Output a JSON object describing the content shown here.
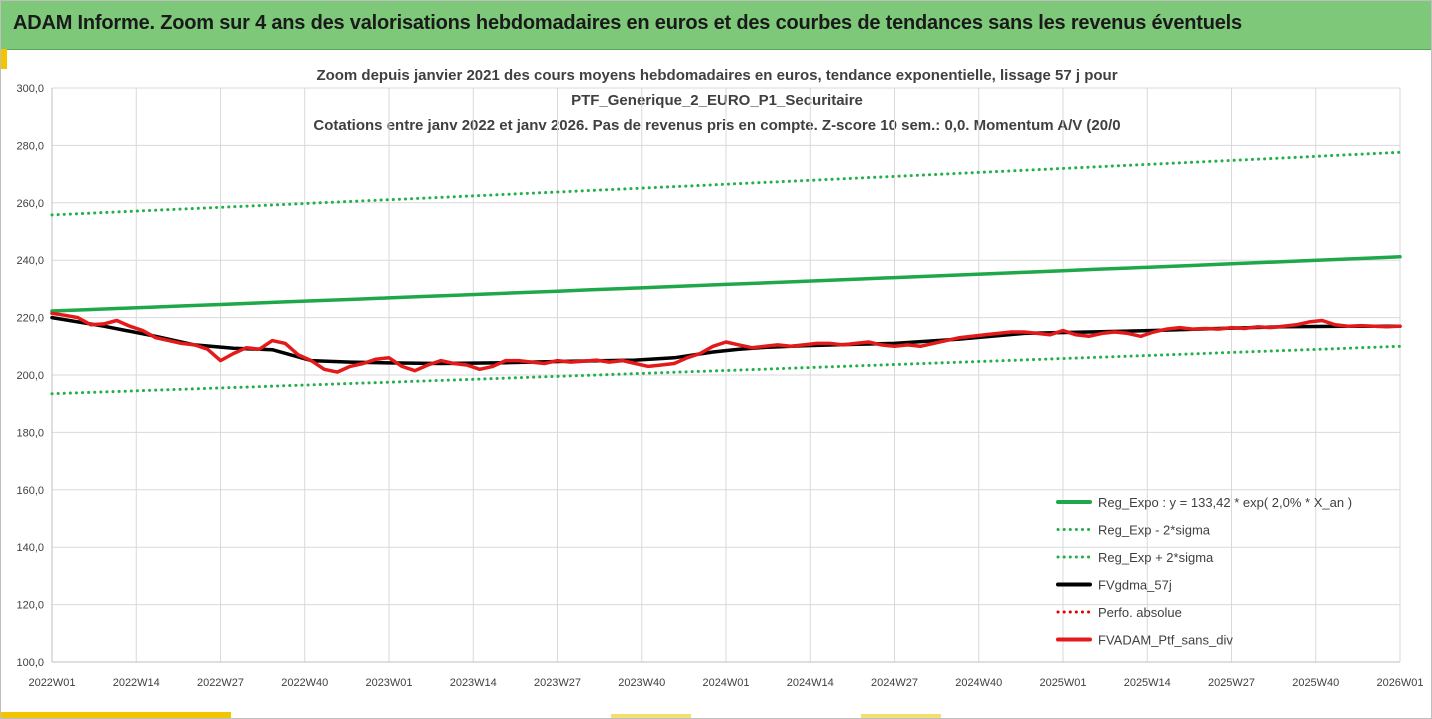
{
  "header": {
    "title": "ADAM Informe. Zoom sur 4 ans des valorisations hebdomadaires en euros et des courbes de tendances sans les revenus éventuels"
  },
  "colors": {
    "header_bg": "#7ec87a",
    "trend": "#1fa84a",
    "band": "#22b04a",
    "sma": "#000000",
    "perf": "#e00000",
    "price": "#e41a1a",
    "grid": "#d9d9d9"
  },
  "chart_data": {
    "type": "line",
    "title_lines": [
      "Zoom depuis janvier 2021 des cours moyens hebdomadaires  en euros, tendance exponentielle, lissage 57 j pour",
      "PTF_Generique_2_EURO_P1_Securitaire",
      "Cotations entre janv 2022 et janv 2026. Pas de revenus pris en compte. Z-score 10 sem.: 0,0. Momentum A/V (20/0"
    ],
    "ylim": [
      100,
      300
    ],
    "y_ticks": [
      "100,0",
      "120,0",
      "140,0",
      "160,0",
      "180,0",
      "200,0",
      "220,0",
      "240,0",
      "260,0",
      "280,0",
      "300,0"
    ],
    "y_tick_values": [
      100,
      120,
      140,
      160,
      180,
      200,
      220,
      240,
      260,
      280,
      300
    ],
    "x_ticks": [
      "2022W01",
      "2022W14",
      "2022W27",
      "2022W40",
      "2023W01",
      "2023W14",
      "2023W27",
      "2023W40",
      "2024W01",
      "2024W14",
      "2024W27",
      "2024W40",
      "2025W01",
      "2025W14",
      "2025W27",
      "2025W40",
      "2026W01"
    ],
    "xlim": [
      0,
      208
    ],
    "grid": "horizontal",
    "legend_position": "bottom-right",
    "series": [
      {
        "name": "Reg_Expo : y = 133,42 * exp( 2,0% *  X_an )",
        "style": "solid-thick",
        "color": "#1fa84a",
        "x": [
          0,
          208
        ],
        "values": [
          222.3,
          241.2
        ],
        "interpolation": "exponential"
      },
      {
        "name": "Reg_Exp - 2*sigma",
        "style": "dotted",
        "color": "#22b04a",
        "x": [
          0,
          208
        ],
        "values": [
          193.5,
          210.0
        ],
        "interpolation": "exponential"
      },
      {
        "name": "Reg_Exp + 2*sigma",
        "style": "dotted",
        "color": "#22b04a",
        "x": [
          0,
          208
        ],
        "values": [
          255.8,
          277.6
        ],
        "interpolation": "exponential"
      },
      {
        "name": "FVgdma_57j",
        "style": "solid-thick",
        "color": "#000000",
        "x": [
          0,
          8,
          16,
          22,
          28,
          34,
          40,
          46,
          52,
          60,
          70,
          80,
          90,
          96,
          102,
          106,
          110,
          116,
          122,
          130,
          140,
          150,
          160,
          170,
          180,
          190,
          200,
          208
        ],
        "values": [
          220.0,
          217.0,
          213.5,
          210.5,
          209.3,
          208.8,
          205.0,
          204.5,
          204.2,
          204.0,
          204.3,
          204.8,
          205.2,
          206.0,
          208.0,
          209.0,
          209.6,
          210.2,
          210.6,
          211.0,
          212.5,
          214.5,
          215.0,
          215.5,
          216.2,
          216.8,
          217.0,
          217.0
        ]
      },
      {
        "name": "Perfo. absolue",
        "style": "dotted",
        "color": "#e00000",
        "x": [],
        "values": []
      },
      {
        "name": "FVADAM_Ptf_sans_div",
        "style": "solid-thick",
        "color": "#e41a1a",
        "x": [
          0,
          2,
          4,
          6,
          8,
          10,
          12,
          14,
          16,
          18,
          20,
          22,
          24,
          26,
          28,
          30,
          32,
          34,
          36,
          38,
          40,
          42,
          44,
          46,
          48,
          50,
          52,
          54,
          56,
          58,
          60,
          62,
          64,
          66,
          68,
          70,
          72,
          74,
          76,
          78,
          80,
          82,
          84,
          86,
          88,
          90,
          92,
          94,
          96,
          98,
          100,
          102,
          104,
          106,
          108,
          110,
          112,
          114,
          116,
          118,
          120,
          122,
          124,
          126,
          128,
          130,
          132,
          134,
          136,
          138,
          140,
          142,
          144,
          146,
          148,
          150,
          152,
          154,
          156,
          158,
          160,
          162,
          164,
          166,
          168,
          170,
          172,
          174,
          176,
          178,
          180,
          182,
          184,
          186,
          188,
          190,
          192,
          194,
          196,
          198,
          200,
          202,
          204,
          206,
          208
        ],
        "values": [
          221.5,
          220.8,
          220.0,
          217.5,
          217.8,
          219.0,
          217.0,
          215.5,
          213.0,
          212.0,
          211.0,
          210.5,
          209.0,
          205.0,
          207.5,
          209.5,
          209.0,
          212.0,
          211.0,
          207.0,
          205.0,
          202.0,
          201.0,
          203.0,
          204.0,
          205.5,
          206.0,
          203.0,
          201.5,
          203.5,
          205.0,
          204.0,
          203.5,
          202.0,
          203.0,
          205.0,
          205.0,
          204.5,
          204.0,
          205.0,
          204.5,
          204.8,
          205.2,
          204.5,
          205.0,
          204.0,
          203.0,
          203.5,
          204.0,
          206.0,
          207.5,
          210.0,
          211.5,
          210.5,
          209.5,
          210.0,
          210.5,
          210.0,
          210.5,
          211.0,
          211.0,
          210.5,
          211.0,
          211.5,
          210.5,
          210.0,
          210.5,
          210.0,
          211.0,
          212.0,
          213.0,
          213.5,
          214.0,
          214.5,
          215.0,
          215.0,
          214.5,
          214.0,
          215.5,
          214.0,
          213.5,
          214.5,
          215.0,
          214.5,
          213.5,
          215.0,
          216.0,
          216.5,
          216.0,
          216.2,
          216.0,
          216.5,
          216.2,
          216.8,
          216.5,
          217.0,
          217.5,
          218.5,
          219.0,
          217.5,
          217.0,
          217.2,
          217.0,
          216.8,
          217.0
        ]
      }
    ]
  }
}
